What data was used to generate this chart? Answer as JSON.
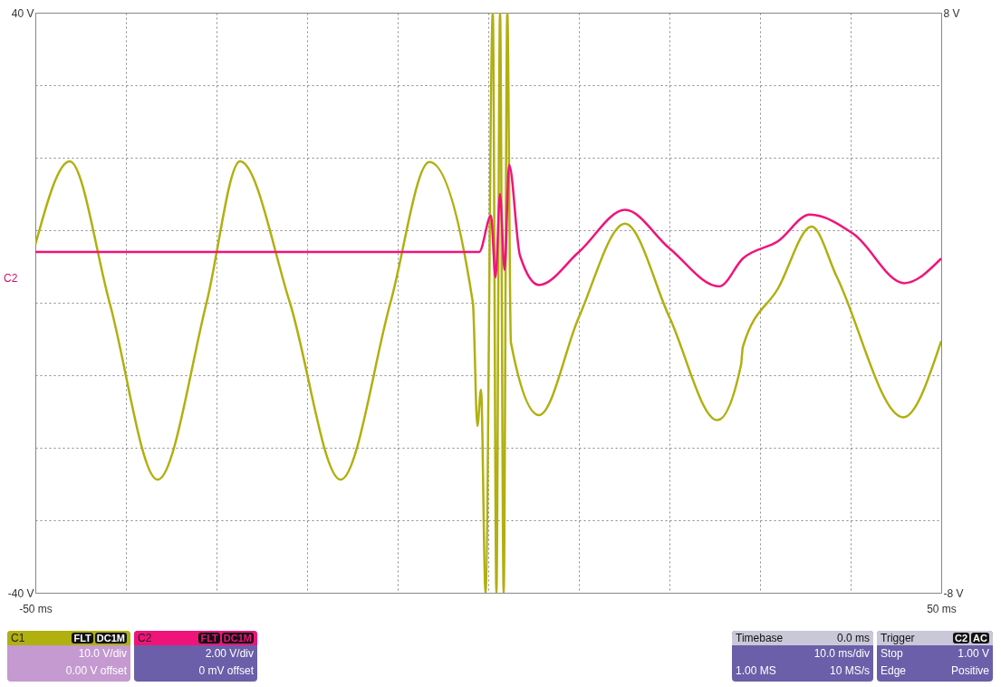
{
  "chart_data": {
    "type": "line",
    "xlim": [
      -50,
      50
    ],
    "ylim": [
      -40,
      40
    ],
    "y2lim": [
      -8,
      8
    ],
    "xticks": [
      {
        "value": -50,
        "label": "-50 ms"
      },
      {
        "value": -40,
        "label": null
      },
      {
        "value": -30,
        "label": null
      },
      {
        "value": -20,
        "label": null
      },
      {
        "value": -10,
        "label": null
      },
      {
        "value": 0,
        "label": null
      },
      {
        "value": 10,
        "label": null
      },
      {
        "value": 20,
        "label": null
      },
      {
        "value": 30,
        "label": null
      },
      {
        "value": 40,
        "label": null
      },
      {
        "value": 50,
        "label": "50 ms"
      }
    ],
    "yticks": [
      {
        "value": -40,
        "label": "-40 V"
      },
      {
        "value": -30,
        "label": null
      },
      {
        "value": -20,
        "label": null
      },
      {
        "value": -10,
        "label": null
      },
      {
        "value": 0,
        "label": null
      },
      {
        "value": 10,
        "label": null
      },
      {
        "value": 20,
        "label": null
      },
      {
        "value": 30,
        "label": null
      },
      {
        "value": 40,
        "label": "40 V"
      }
    ],
    "y2ticks": [
      {
        "value": -8,
        "label": "-8 V"
      },
      {
        "value": 8,
        "label": "8 V"
      }
    ],
    "grid": true,
    "legend": false,
    "series": [
      {
        "color": "#b0b010",
        "x": [
          -50,
          -46.2,
          -41.8,
          -36.5,
          -31.1,
          -27.4,
          -21.9,
          -16.3,
          -10.8,
          -6.5,
          -1.7,
          -1.2,
          -0.8,
          -0.3,
          0.5,
          0.9,
          1.3,
          1.7,
          2.1,
          2.5,
          5.6,
          10,
          15.1,
          20,
          25.3,
          27.9,
          28.1,
          32,
          35.7,
          38.5,
          45.8,
          50
        ],
        "values": [
          8,
          19.5,
          0,
          -24.4,
          0,
          19.5,
          0,
          -24.4,
          0,
          19.4,
          0,
          -17,
          -12,
          -40,
          40,
          -40,
          40,
          -40,
          40,
          -5.5,
          -15.5,
          -2,
          10.9,
          -2,
          -16.2,
          -8.6,
          -6.1,
          2,
          10.5,
          3.5,
          -15.8,
          -5.3
        ]
      },
      {
        "color": "#f0147a",
        "axis": "y2",
        "x": [
          -50,
          -40,
          -30,
          -20,
          -10,
          -1,
          0.3,
          0.8,
          1.3,
          1.8,
          2.3,
          3.5,
          5.6,
          10,
          15.1,
          20,
          25.5,
          28.1,
          32,
          35.5,
          40.4,
          45.9,
          50
        ],
        "values": [
          1.4,
          1.4,
          1.4,
          1.4,
          1.4,
          1.4,
          2.4,
          0.7,
          3,
          0.9,
          3.8,
          1.3,
          0.49,
          1.4,
          2.56,
          1.5,
          0.45,
          1.22,
          1.7,
          2.43,
          1.88,
          0.54,
          1.22
        ]
      }
    ],
    "annotations": [
      "C1",
      "FLT",
      "DC1M",
      "10.0 V/div",
      "0.00 V offset",
      "C2",
      "FLT",
      "DC1M",
      "2.00 V/div",
      "0 mV offset",
      "Timebase",
      "0.0 ms",
      "10.0 ms/div",
      "1.00 MS",
      "10 MS/s",
      "Trigger",
      "C2",
      "AC",
      "Stop",
      "1.00 V",
      "Edge",
      "Positive",
      "C2"
    ]
  }
}
